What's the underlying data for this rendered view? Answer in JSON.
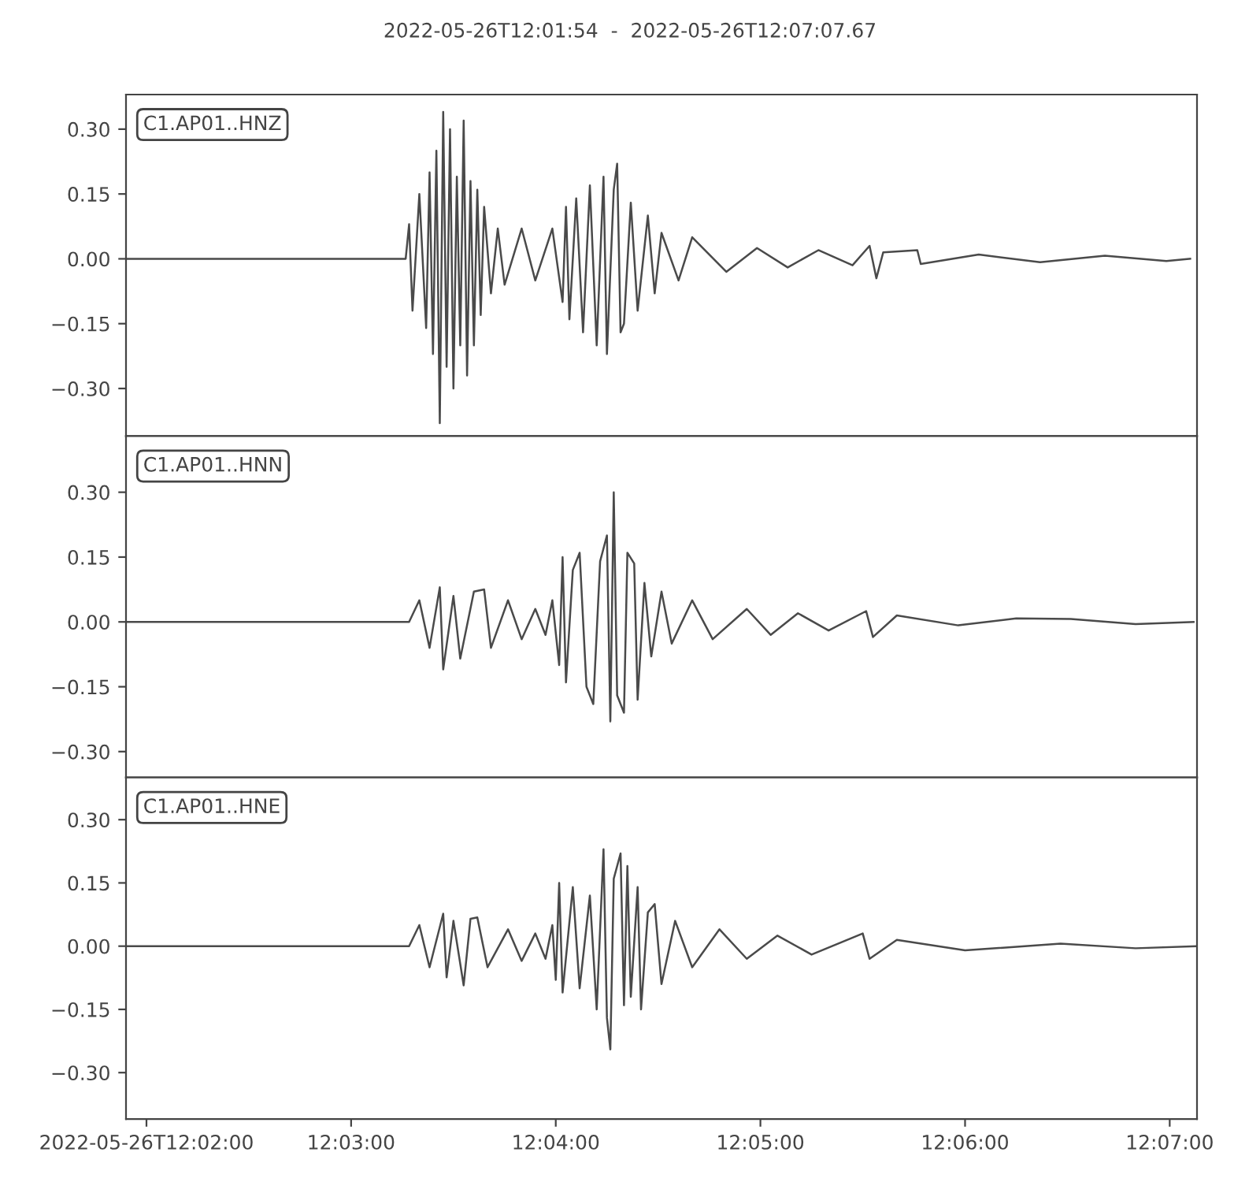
{
  "chart_data": [
    {
      "type": "line",
      "title": "2022-05-26T12:01:54  -  2022-05-26T12:07:07.67",
      "x": [
        "2022-05-26T12:01:54",
        "2022-05-26T12:03:16",
        "2022-05-26T12:03:17",
        "2022-05-26T12:03:18",
        "2022-05-26T12:03:20",
        "2022-05-26T12:03:22",
        "2022-05-26T12:03:23",
        "2022-05-26T12:03:24",
        "2022-05-26T12:03:25",
        "2022-05-26T12:03:26",
        "2022-05-26T12:03:27",
        "2022-05-26T12:03:28",
        "2022-05-26T12:03:29",
        "2022-05-26T12:03:30",
        "2022-05-26T12:03:31",
        "2022-05-26T12:03:32",
        "2022-05-26T12:03:33",
        "2022-05-26T12:03:34",
        "2022-05-26T12:03:35",
        "2022-05-26T12:03:36",
        "2022-05-26T12:03:37",
        "2022-05-26T12:03:38",
        "2022-05-26T12:03:39",
        "2022-05-26T12:03:41",
        "2022-05-26T12:03:43",
        "2022-05-26T12:03:45",
        "2022-05-26T12:03:50",
        "2022-05-26T12:03:54",
        "2022-05-26T12:03:59",
        "2022-05-26T12:04:02",
        "2022-05-26T12:04:03",
        "2022-05-26T12:04:04",
        "2022-05-26T12:04:06",
        "2022-05-26T12:04:08",
        "2022-05-26T12:04:10",
        "2022-05-26T12:04:12",
        "2022-05-26T12:04:14",
        "2022-05-26T12:04:15",
        "2022-05-26T12:04:17",
        "2022-05-26T12:04:18",
        "2022-05-26T12:04:19",
        "2022-05-26T12:04:20",
        "2022-05-26T12:04:22",
        "2022-05-26T12:04:24",
        "2022-05-26T12:04:27",
        "2022-05-26T12:04:29",
        "2022-05-26T12:04:31",
        "2022-05-26T12:04:36",
        "2022-05-26T12:04:40",
        "2022-05-26T12:04:50",
        "2022-05-26T12:04:59",
        "2022-05-26T12:05:08",
        "2022-05-26T12:05:17",
        "2022-05-26T12:05:27",
        "2022-05-26T12:05:32",
        "2022-05-26T12:05:34",
        "2022-05-26T12:05:36",
        "2022-05-26T12:05:46",
        "2022-05-26T12:05:47",
        "2022-05-26T12:06:04",
        "2022-05-26T12:06:22",
        "2022-05-26T12:06:41",
        "2022-05-26T12:06:59",
        "2022-05-26T12:07:06"
      ],
      "series": [
        {
          "name": "C1.AP01..HNZ",
          "color": "#4a4a4a",
          "values": [
            0,
            0,
            0.08,
            -0.12,
            0.15,
            -0.16,
            0.2,
            -0.22,
            0.25,
            -0.38,
            0.34,
            -0.25,
            0.3,
            -0.3,
            0.19,
            -0.2,
            0.32,
            -0.27,
            0.18,
            -0.2,
            0.16,
            -0.13,
            0.12,
            -0.08,
            0.07,
            -0.06,
            0.07,
            -0.05,
            0.07,
            -0.1,
            0.12,
            -0.14,
            0.14,
            -0.17,
            0.17,
            -0.2,
            0.19,
            -0.22,
            0.16,
            0.22,
            -0.17,
            -0.15,
            0.13,
            -0.12,
            0.1,
            -0.08,
            0.06,
            -0.05,
            0.05,
            -0.03,
            0.025,
            -0.02,
            0.02,
            -0.015,
            0.03,
            -0.045,
            0.015,
            0.02,
            -0.012,
            0.01,
            -0.008,
            0.007,
            -0.005,
            0
          ]
        }
      ],
      "xlim": [
        "2022-05-26T12:01:54",
        "2022-05-26T12:07:08"
      ],
      "xticks": [
        {
          "value": "2022-05-26T12:02:00",
          "label": null
        },
        {
          "value": "2022-05-26T12:03:00",
          "label": null
        },
        {
          "value": "2022-05-26T12:04:00",
          "label": null
        },
        {
          "value": "2022-05-26T12:05:00",
          "label": null
        },
        {
          "value": "2022-05-26T12:06:00",
          "label": null
        },
        {
          "value": "2022-05-26T12:07:00",
          "label": null
        }
      ],
      "ylim": [
        -0.41,
        0.38
      ],
      "yticks": [
        {
          "value": -0.3,
          "label": "−0.30"
        },
        {
          "value": -0.15,
          "label": "−0.15"
        },
        {
          "value": 0,
          "label": "0.00"
        },
        {
          "value": 0.15,
          "label": "0.15"
        },
        {
          "value": 0.3,
          "label": "0.30"
        }
      ],
      "tick_labels": "y"
    },
    {
      "type": "line",
      "x": [
        "2022-05-26T12:01:54",
        "2022-05-26T12:03:17",
        "2022-05-26T12:03:20",
        "2022-05-26T12:03:23",
        "2022-05-26T12:03:26",
        "2022-05-26T12:03:27",
        "2022-05-26T12:03:30",
        "2022-05-26T12:03:32",
        "2022-05-26T12:03:36",
        "2022-05-26T12:03:39",
        "2022-05-26T12:03:41",
        "2022-05-26T12:03:46",
        "2022-05-26T12:03:50",
        "2022-05-26T12:03:54",
        "2022-05-26T12:03:57",
        "2022-05-26T12:03:59",
        "2022-05-26T12:04:01",
        "2022-05-26T12:04:02",
        "2022-05-26T12:04:03",
        "2022-05-26T12:04:05",
        "2022-05-26T12:04:07",
        "2022-05-26T12:04:09",
        "2022-05-26T12:04:11",
        "2022-05-26T12:04:13",
        "2022-05-26T12:04:15",
        "2022-05-26T12:04:16",
        "2022-05-26T12:04:17",
        "2022-05-26T12:04:18",
        "2022-05-26T12:04:20",
        "2022-05-26T12:04:21",
        "2022-05-26T12:04:23",
        "2022-05-26T12:04:24",
        "2022-05-26T12:04:26",
        "2022-05-26T12:04:28",
        "2022-05-26T12:04:31",
        "2022-05-26T12:04:34",
        "2022-05-26T12:04:40",
        "2022-05-26T12:04:46",
        "2022-05-26T12:04:56",
        "2022-05-26T12:05:03",
        "2022-05-26T12:05:11",
        "2022-05-26T12:05:20",
        "2022-05-26T12:05:31",
        "2022-05-26T12:05:33",
        "2022-05-26T12:05:40",
        "2022-05-26T12:05:58",
        "2022-05-26T12:06:15",
        "2022-05-26T12:06:31",
        "2022-05-26T12:06:50",
        "2022-05-26T12:07:07"
      ],
      "series": [
        {
          "name": "C1.AP01..HNN",
          "color": "#4a4a4a",
          "values": [
            0,
            0,
            0.05,
            -0.06,
            0.08,
            -0.11,
            0.06,
            -0.085,
            0.07,
            0.075,
            -0.06,
            0.05,
            -0.04,
            0.03,
            -0.03,
            0.05,
            -0.1,
            0.15,
            -0.14,
            0.12,
            0.16,
            -0.15,
            -0.19,
            0.14,
            0.2,
            -0.23,
            0.3,
            -0.17,
            -0.21,
            0.16,
            0.135,
            -0.18,
            0.09,
            -0.08,
            0.07,
            -0.05,
            0.05,
            -0.04,
            0.03,
            -0.03,
            0.02,
            -0.02,
            0.025,
            -0.035,
            0.015,
            -0.008,
            0.008,
            0.007,
            -0.005,
            0
          ]
        }
      ],
      "xlim": [
        "2022-05-26T12:01:54",
        "2022-05-26T12:07:08"
      ],
      "xticks": [
        {
          "value": "2022-05-26T12:02:00",
          "label": null
        },
        {
          "value": "2022-05-26T12:03:00",
          "label": null
        },
        {
          "value": "2022-05-26T12:04:00",
          "label": null
        },
        {
          "value": "2022-05-26T12:05:00",
          "label": null
        },
        {
          "value": "2022-05-26T12:06:00",
          "label": null
        },
        {
          "value": "2022-05-26T12:07:00",
          "label": null
        }
      ],
      "ylim": [
        -0.36,
        0.43
      ],
      "yticks": [
        {
          "value": -0.3,
          "label": "−0.30"
        },
        {
          "value": -0.15,
          "label": "−0.15"
        },
        {
          "value": 0,
          "label": "0.00"
        },
        {
          "value": 0.15,
          "label": "0.15"
        },
        {
          "value": 0.3,
          "label": "0.30"
        }
      ],
      "tick_labels": "y"
    },
    {
      "type": "line",
      "x": [
        "2022-05-26T12:01:54",
        "2022-05-26T12:03:17",
        "2022-05-26T12:03:20",
        "2022-05-26T12:03:23",
        "2022-05-26T12:03:27",
        "2022-05-26T12:03:28",
        "2022-05-26T12:03:30",
        "2022-05-26T12:03:33",
        "2022-05-26T12:03:35",
        "2022-05-26T12:03:37",
        "2022-05-26T12:03:40",
        "2022-05-26T12:03:46",
        "2022-05-26T12:03:50",
        "2022-05-26T12:03:54",
        "2022-05-26T12:03:57",
        "2022-05-26T12:03:59",
        "2022-05-26T12:04:00",
        "2022-05-26T12:04:01",
        "2022-05-26T12:04:02",
        "2022-05-26T12:04:05",
        "2022-05-26T12:04:07",
        "2022-05-26T12:04:10",
        "2022-05-26T12:04:12",
        "2022-05-26T12:04:14",
        "2022-05-26T12:04:15",
        "2022-05-26T12:04:16",
        "2022-05-26T12:04:17",
        "2022-05-26T12:04:19",
        "2022-05-26T12:04:20",
        "2022-05-26T12:04:21",
        "2022-05-26T12:04:22",
        "2022-05-26T12:04:24",
        "2022-05-26T12:04:25",
        "2022-05-26T12:04:27",
        "2022-05-26T12:04:29",
        "2022-05-26T12:04:31",
        "2022-05-26T12:04:35",
        "2022-05-26T12:04:40",
        "2022-05-26T12:04:48",
        "2022-05-26T12:04:56",
        "2022-05-26T12:05:05",
        "2022-05-26T12:05:15",
        "2022-05-26T12:05:30",
        "2022-05-26T12:05:32",
        "2022-05-26T12:05:40",
        "2022-05-26T12:06:00",
        "2022-05-26T12:06:28",
        "2022-05-26T12:06:50",
        "2022-05-26T12:07:08"
      ],
      "series": [
        {
          "name": "C1.AP01..HNE",
          "color": "#4a4a4a",
          "values": [
            0,
            0,
            0.05,
            -0.05,
            0.077,
            -0.074,
            0.06,
            -0.093,
            0.065,
            0.068,
            -0.05,
            0.04,
            -0.035,
            0.03,
            -0.03,
            0.05,
            -0.08,
            0.15,
            -0.11,
            0.14,
            -0.1,
            0.12,
            -0.15,
            0.23,
            -0.17,
            -0.245,
            0.16,
            0.22,
            -0.14,
            0.19,
            -0.12,
            0.14,
            -0.15,
            0.08,
            0.1,
            -0.09,
            0.06,
            -0.05,
            0.04,
            -0.03,
            0.025,
            -0.02,
            0.03,
            -0.03,
            0.015,
            -0.01,
            0.006,
            -0.005,
            0
          ]
        }
      ],
      "xlim": [
        "2022-05-26T12:01:54",
        "2022-05-26T12:07:08"
      ],
      "xticks": [
        {
          "value": "2022-05-26T12:02:00",
          "label": "2022-05-26T12:02:00"
        },
        {
          "value": "2022-05-26T12:03:00",
          "label": "12:03:00"
        },
        {
          "value": "2022-05-26T12:04:00",
          "label": "12:04:00"
        },
        {
          "value": "2022-05-26T12:05:00",
          "label": "12:05:00"
        },
        {
          "value": "2022-05-26T12:06:00",
          "label": "12:06:00"
        },
        {
          "value": "2022-05-26T12:07:00",
          "label": "12:07:00"
        }
      ],
      "ylim": [
        -0.41,
        0.4
      ],
      "yticks": [
        {
          "value": -0.3,
          "label": "−0.30"
        },
        {
          "value": -0.15,
          "label": "−0.15"
        },
        {
          "value": 0,
          "label": "0.00"
        },
        {
          "value": 0.15,
          "label": "0.15"
        },
        {
          "value": 0.3,
          "label": "0.30"
        }
      ]
    }
  ]
}
